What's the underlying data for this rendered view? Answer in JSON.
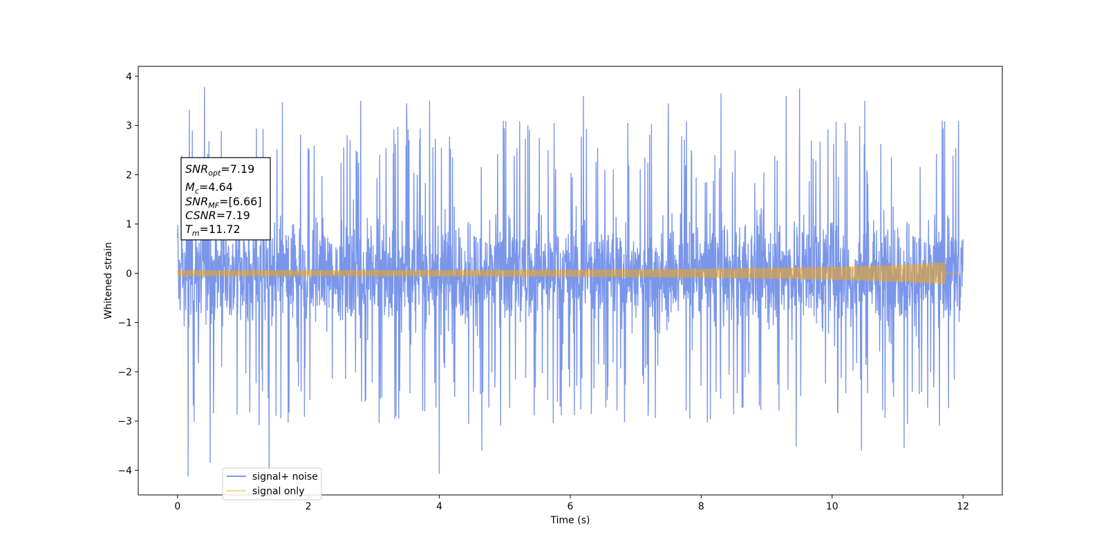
{
  "chart_data": {
    "type": "line",
    "title": "",
    "xlabel": "Time (s)",
    "ylabel": "Whitened strain",
    "xlim": [
      -0.6,
      12.6
    ],
    "ylim": [
      -4.5,
      4.2
    ],
    "x_ticks": [
      0,
      2,
      4,
      6,
      8,
      10,
      12
    ],
    "x_tick_labels": [
      "0",
      "2",
      "4",
      "6",
      "8",
      "10",
      "12"
    ],
    "y_ticks": [
      4,
      3,
      2,
      1,
      0,
      -1,
      -2,
      -3,
      -4
    ],
    "y_tick_labels": [
      "4",
      "3",
      "2",
      "1",
      "0",
      "−1",
      "−2",
      "−3",
      "−4"
    ],
    "grid": false,
    "legend_position": "lower-left",
    "series": [
      {
        "name": "signal+ noise",
        "color": "#4169e1",
        "opacity": 0.7,
        "x_range": [
          0,
          12
        ],
        "typical_envelope": [
          -2.0,
          2.3
        ],
        "notable_peaks": [
          {
            "x": 0.18,
            "y": 3.32
          },
          {
            "x": 0.41,
            "y": 3.78
          },
          {
            "x": 0.16,
            "y": -4.13
          },
          {
            "x": 0.5,
            "y": -3.85
          },
          {
            "x": 1.4,
            "y": -4.0
          },
          {
            "x": 1.6,
            "y": 3.47
          },
          {
            "x": 2.8,
            "y": 3.5
          },
          {
            "x": 3.5,
            "y": 3.45
          },
          {
            "x": 3.85,
            "y": 3.5
          },
          {
            "x": 4.0,
            "y": -4.07
          },
          {
            "x": 4.65,
            "y": -3.6
          },
          {
            "x": 6.2,
            "y": 3.6
          },
          {
            "x": 7.5,
            "y": 3.45
          },
          {
            "x": 8.3,
            "y": 3.65
          },
          {
            "x": 9.3,
            "y": 3.6
          },
          {
            "x": 9.5,
            "y": 3.75
          },
          {
            "x": 9.45,
            "y": -3.52
          },
          {
            "x": 10.45,
            "y": -3.6
          },
          {
            "x": 10.5,
            "y": 3.5
          },
          {
            "x": 11.1,
            "y": -3.55
          }
        ]
      },
      {
        "name": "signal only",
        "color": "#ffa500",
        "opacity": 0.5,
        "x_range": [
          0,
          12
        ],
        "amplitude_envelope": [
          {
            "x": 0,
            "y": 0.06
          },
          {
            "x": 2,
            "y": 0.06
          },
          {
            "x": 4,
            "y": 0.065
          },
          {
            "x": 6,
            "y": 0.07
          },
          {
            "x": 8,
            "y": 0.09
          },
          {
            "x": 10,
            "y": 0.13
          },
          {
            "x": 11,
            "y": 0.17
          },
          {
            "x": 11.72,
            "y": 0.22
          },
          {
            "x": 11.74,
            "y": 0.0
          },
          {
            "x": 12,
            "y": 0.0
          }
        ]
      }
    ],
    "annotation_box": {
      "lines": [
        {
          "label": "SNR",
          "sub": "opt",
          "value": "=7.19"
        },
        {
          "label": "M",
          "sub": "c",
          "value": "=4.64"
        },
        {
          "label": "SNR",
          "sub": "MF",
          "value": "=[6.66]"
        },
        {
          "label": "CSNR",
          "sub": "",
          "value": "=7.19"
        },
        {
          "label": "T",
          "sub": "m",
          "value": "=11.72"
        }
      ]
    }
  }
}
